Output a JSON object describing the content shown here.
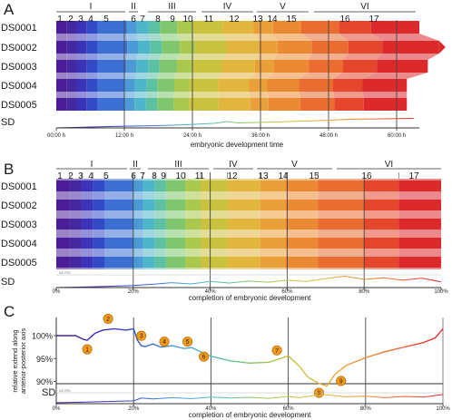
{
  "panels": {
    "A": {
      "letter": "A",
      "xlabel": "embryonic development time",
      "ticks": [
        "00:00 h",
        "12:00 h",
        "24:00 h",
        "36:00 h",
        "48:00 h",
        "60:00 h"
      ]
    },
    "B": {
      "letter": "B",
      "xlabel": "completion of embryonic development",
      "ticks": [
        "0%",
        "20%",
        "40%",
        "60%",
        "80%",
        "100%"
      ]
    },
    "C": {
      "letter": "C",
      "xlabel": "completion of embryonic development",
      "ylabel1": "relative extend along",
      "ylabel2": "anterior-posterior axis",
      "ticks": [
        "0%",
        "20%",
        "40%",
        "60%",
        "80%",
        "100%"
      ],
      "yticks": [
        "100%",
        "95%",
        "90%"
      ]
    }
  },
  "rows": [
    "DS0001",
    "DS0002",
    "DS0003",
    "DS0004",
    "DS0005"
  ],
  "sd_label": "SD",
  "sd_ref": "±2.0%",
  "stage_groups": [
    "I",
    "II",
    "III",
    "IV",
    "V",
    "VI"
  ],
  "stages": [
    "1",
    "2",
    "3",
    "4",
    "5",
    "6",
    "7",
    "8",
    "9",
    "10",
    "11",
    "12",
    "13",
    "14",
    "15",
    "16",
    "17"
  ],
  "markers": [
    "1",
    "2",
    "3",
    "4",
    "5",
    "6",
    "7",
    "8",
    "9"
  ],
  "colors": {
    "stages": [
      "#4a1d96",
      "#4527a0",
      "#3b34b8",
      "#3349c6",
      "#3d6fd3",
      "#4b9ad6",
      "#4fb5c8",
      "#5cc0a3",
      "#7fc66e",
      "#a9c84d",
      "#c9c23e",
      "#e2b53c",
      "#e9a038",
      "#ec8a34",
      "#ea6c31",
      "#e5472d",
      "#dc2a2c"
    ],
    "axis": "#333333",
    "marker": "#f29a1c"
  },
  "chart_data": [
    {
      "panel": "A",
      "type": "area",
      "title": "",
      "xlabel": "embryonic development time",
      "x_unit": "hours",
      "xlim": [
        0,
        64
      ],
      "series": [
        {
          "name": "DS0001",
          "stage_starts": [
            0,
            1.8,
            3.6,
            5.4,
            7.2,
            12.4,
            14.2,
            16.3,
            18.3,
            21.3,
            24.1,
            29.3,
            34.8,
            38.2,
            43.2,
            49.8,
            55.5
          ],
          "end": 64
        },
        {
          "name": "DS0002",
          "stage_starts": [
            0,
            1.8,
            3.6,
            5.4,
            7.2,
            12.5,
            14.4,
            16.5,
            18.6,
            21.8,
            24.5,
            30.0,
            35.7,
            39.0,
            45.0,
            51.5,
            57.5
          ],
          "end": 67.5
        },
        {
          "name": "DS0003",
          "stage_starts": [
            0,
            1.8,
            3.6,
            5.4,
            7.2,
            12.3,
            14.1,
            16.2,
            18.2,
            21.2,
            24.0,
            29.2,
            35.0,
            38.4,
            44.5,
            50.5,
            56.5
          ],
          "end": 65.5
        },
        {
          "name": "DS0004",
          "stage_starts": [
            0,
            1.8,
            3.6,
            5.4,
            7.2,
            12.0,
            13.9,
            15.9,
            17.8,
            20.8,
            23.5,
            28.5,
            34.0,
            37.2,
            42.8,
            48.8,
            54.0
          ],
          "end": 61.8
        },
        {
          "name": "DS0005",
          "stage_starts": [
            0,
            1.8,
            3.6,
            5.4,
            7.2,
            12.0,
            13.8,
            15.8,
            17.8,
            20.7,
            23.4,
            28.6,
            34.2,
            37.4,
            43.0,
            49.0,
            54.2
          ],
          "end": 61.8
        }
      ],
      "sd_series": {
        "name": "SD",
        "x": [
          0,
          4,
          8,
          12,
          16,
          20,
          24,
          28,
          30,
          32,
          36,
          40,
          44,
          48,
          52,
          56,
          60,
          63
        ],
        "y": [
          0,
          0.2,
          0.4,
          0.6,
          0.7,
          0.9,
          1.2,
          1.6,
          2.2,
          1.7,
          1.9,
          2.1,
          2.4,
          2.6,
          3.0,
          3.1,
          3.2,
          3.3
        ]
      }
    },
    {
      "panel": "B",
      "type": "area",
      "title": "",
      "xlabel": "completion of embryonic development",
      "x_unit": "percent",
      "xlim": [
        0,
        100
      ],
      "stage_starts": [
        0,
        3.5,
        6.5,
        9.5,
        12.5,
        20.0,
        22.5,
        25.5,
        28.5,
        33.5,
        37.5,
        44.5,
        53.0,
        59.5,
        68.0,
        80.0,
        89.0
      ],
      "end": 100,
      "sd_series": {
        "name": "SD",
        "x": [
          0,
          10,
          20,
          25,
          30,
          35,
          40,
          45,
          50,
          55,
          60,
          65,
          70,
          75,
          80,
          85,
          90,
          95,
          100
        ],
        "y": [
          0,
          0.2,
          0.5,
          0.8,
          1.2,
          0.9,
          1.5,
          1.1,
          1.6,
          1.3,
          1.8,
          1.5,
          2.2,
          2.8,
          2.0,
          2.4,
          1.8,
          2.3,
          1.4
        ]
      }
    },
    {
      "panel": "C",
      "type": "line",
      "title": "",
      "xlabel": "completion of embryonic development",
      "ylabel": "relative extend along anterior-posterior axis",
      "ylim": [
        86,
        102.5
      ],
      "x": [
        0,
        5,
        7,
        8,
        10,
        12,
        15,
        18,
        20,
        21,
        22,
        23,
        25,
        27,
        30,
        33,
        35,
        37,
        40,
        45,
        50,
        55,
        58,
        60,
        63,
        65,
        68,
        70,
        72,
        75,
        80,
        85,
        90,
        95,
        98,
        100
      ],
      "y": [
        100,
        100,
        99.2,
        99.0,
        100.5,
        101.2,
        101.5,
        101.2,
        101.5,
        99.0,
        97.8,
        97.6,
        98.2,
        97.5,
        97.8,
        97.2,
        97.4,
        96.6,
        95.5,
        94.5,
        94.0,
        94.2,
        95.0,
        95.6,
        93.2,
        91.0,
        89.5,
        89.0,
        91.5,
        93.5,
        95.2,
        96.5,
        97.5,
        98.5,
        99.5,
        101.5
      ],
      "markers": [
        {
          "label": "1",
          "x": 8,
          "y": 99.0
        },
        {
          "label": "2",
          "x": 12,
          "y": 101.3
        },
        {
          "label": "3",
          "x": 22,
          "y": 98.0
        },
        {
          "label": "4",
          "x": 27,
          "y": 97.5
        },
        {
          "label": "5",
          "x": 33,
          "y": 97.3
        },
        {
          "label": "6",
          "x": 37,
          "y": 96.6
        },
        {
          "label": "7",
          "x": 58,
          "y": 95.0
        },
        {
          "label": "8",
          "x": 67,
          "y": 89.5
        },
        {
          "label": "9",
          "x": 72,
          "y": 91.5
        }
      ],
      "sd_series": {
        "name": "SD",
        "x": [
          0,
          10,
          20,
          22,
          25,
          30,
          35,
          40,
          45,
          50,
          55,
          60,
          63,
          66,
          70,
          75,
          80,
          85,
          90,
          95,
          100
        ],
        "y": [
          0,
          0.3,
          0.6,
          1.5,
          1.2,
          1.6,
          1.3,
          1.8,
          1.5,
          1.7,
          1.4,
          2.0,
          1.6,
          2.2,
          2.5,
          1.9,
          2.1,
          1.6,
          2.0,
          1.8,
          2.6
        ]
      }
    }
  ]
}
